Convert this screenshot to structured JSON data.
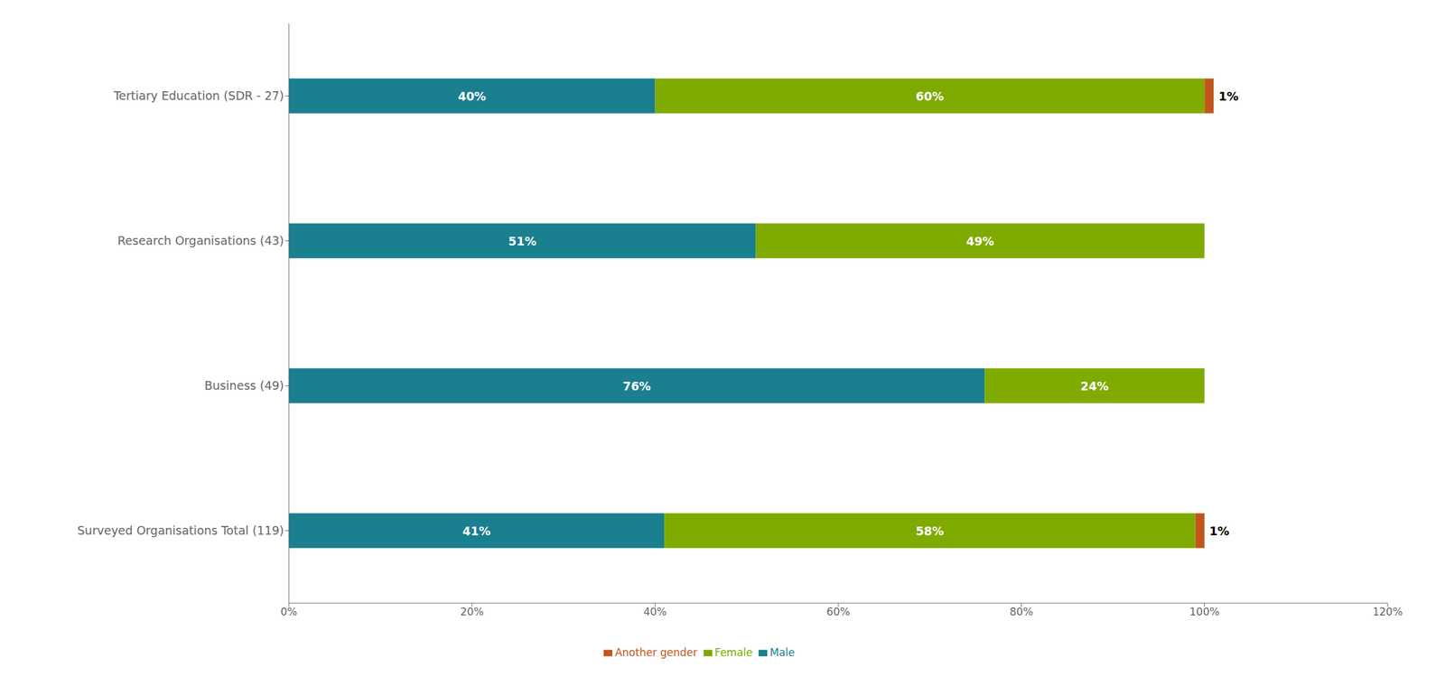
{
  "chart_data": {
    "type": "bar",
    "orientation": "horizontal",
    "stacked": true,
    "data_labels": true,
    "grid": false,
    "legend": "bottom",
    "categories": [
      "Surveyed Organisations Total (119)",
      "Business (49)",
      "Research Organisations (43)",
      "Tertiary Education (SDR - 27)"
    ],
    "series": [
      {
        "name": "Male",
        "color": "#1a7f8e",
        "values": [
          41,
          76,
          51,
          40
        ],
        "value_labels": [
          "41%",
          "76%",
          "51%",
          "40%"
        ]
      },
      {
        "name": "Female",
        "color": "#7faa00",
        "values": [
          58,
          24,
          49,
          60
        ],
        "value_labels": [
          "58%",
          "24%",
          "49%",
          "60%"
        ]
      },
      {
        "name": "Another gender",
        "color": "#c0561b",
        "values": [
          1,
          0,
          0,
          1
        ],
        "value_labels": [
          "1%",
          null,
          null,
          "1%"
        ]
      }
    ],
    "xlim": [
      0,
      120
    ],
    "xticks": [
      {
        "value": 0,
        "label": "0%"
      },
      {
        "value": 20,
        "label": "20%"
      },
      {
        "value": 40,
        "label": "40%"
      },
      {
        "value": 60,
        "label": "60%"
      },
      {
        "value": 80,
        "label": "80%"
      },
      {
        "value": 100,
        "label": "100%"
      },
      {
        "value": 120,
        "label": "120%"
      }
    ]
  }
}
